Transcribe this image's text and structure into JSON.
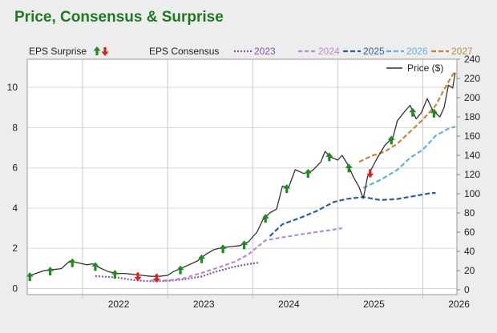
{
  "title": "Price, Consensus & Surprise",
  "legend": {
    "surprise_label": "EPS Surprise",
    "consensus_label": "EPS Consensus",
    "price_label": "Price ($)"
  },
  "colors": {
    "background": "#ededed",
    "plot_bg": "#ffffff",
    "title": "#1f7a1f",
    "up_arrow": "#1f8a1f",
    "down_arrow": "#e02020",
    "price": "#333333"
  },
  "chart_data": {
    "type": "line",
    "title": "Price, Consensus & Surprise",
    "y_left": {
      "label": "",
      "ticks": [
        0,
        2,
        4,
        6,
        8,
        10
      ],
      "range": [
        -0.3,
        11.4
      ]
    },
    "y_right": {
      "label": "Price ($)",
      "ticks": [
        0,
        20,
        40,
        60,
        80,
        100,
        120,
        140,
        160,
        180,
        200,
        220,
        240
      ],
      "range": [
        -5,
        240
      ]
    },
    "x": {
      "ticks": [
        "2022",
        "2023",
        "2024",
        "2025",
        "2026"
      ],
      "range": [
        2021.35,
        2026.4
      ]
    },
    "grid": true,
    "legend_position": "top",
    "series": [
      {
        "name": "2023",
        "color": "#8a4fa8",
        "dash": "2,2",
        "points": [
          [
            2022.15,
            0.62
          ],
          [
            2022.4,
            0.55
          ],
          [
            2022.6,
            0.42
          ],
          [
            2022.8,
            0.36
          ],
          [
            2023.0,
            0.38
          ],
          [
            2023.2,
            0.46
          ],
          [
            2023.4,
            0.6
          ],
          [
            2023.55,
            0.82
          ],
          [
            2023.75,
            1.05
          ],
          [
            2023.9,
            1.18
          ],
          [
            2024.05,
            1.28
          ],
          [
            2024.07,
            1.28
          ]
        ]
      },
      {
        "name": "2024",
        "color": "#b48ccf",
        "dash": "5,3",
        "points": [
          [
            2022.8,
            0.4
          ],
          [
            2023.0,
            0.4
          ],
          [
            2023.2,
            0.52
          ],
          [
            2023.4,
            0.78
          ],
          [
            2023.6,
            1.05
          ],
          [
            2023.8,
            1.35
          ],
          [
            2023.95,
            1.7
          ],
          [
            2024.15,
            2.4
          ],
          [
            2024.4,
            2.58
          ],
          [
            2024.65,
            2.75
          ],
          [
            2024.9,
            2.9
          ],
          [
            2025.05,
            3.0
          ]
        ]
      },
      {
        "name": "2025",
        "color": "#2a5fa0",
        "dash": "6,3",
        "points": [
          [
            2024.2,
            2.6
          ],
          [
            2024.35,
            3.2
          ],
          [
            2024.55,
            3.5
          ],
          [
            2024.75,
            3.85
          ],
          [
            2024.95,
            4.3
          ],
          [
            2025.1,
            4.45
          ],
          [
            2025.3,
            4.55
          ],
          [
            2025.5,
            4.4
          ],
          [
            2025.7,
            4.45
          ],
          [
            2025.9,
            4.6
          ],
          [
            2026.1,
            4.75
          ],
          [
            2026.15,
            4.75
          ]
        ]
      },
      {
        "name": "2026",
        "color": "#5fb1e0",
        "dash": "6,3",
        "points": [
          [
            2025.3,
            5.0
          ],
          [
            2025.5,
            5.4
          ],
          [
            2025.7,
            5.9
          ],
          [
            2025.85,
            6.5
          ],
          [
            2026.0,
            6.9
          ],
          [
            2026.15,
            7.6
          ],
          [
            2026.3,
            7.95
          ],
          [
            2026.38,
            8.05
          ]
        ]
      },
      {
        "name": "2027",
        "color": "#c08a3a",
        "dash": "6,3",
        "points": [
          [
            2025.25,
            6.3
          ],
          [
            2025.4,
            6.6
          ],
          [
            2025.55,
            6.8
          ],
          [
            2025.7,
            7.2
          ],
          [
            2025.85,
            7.8
          ],
          [
            2026.0,
            8.4
          ],
          [
            2026.15,
            9.1
          ],
          [
            2026.25,
            9.9
          ],
          [
            2026.33,
            10.5
          ],
          [
            2026.38,
            10.8
          ]
        ]
      },
      {
        "name": "Price ($)",
        "axis": "right",
        "color": "#333333",
        "points": [
          [
            2021.35,
            14
          ],
          [
            2021.45,
            17
          ],
          [
            2021.55,
            20
          ],
          [
            2021.65,
            21
          ],
          [
            2021.75,
            22
          ],
          [
            2021.85,
            30
          ],
          [
            2021.95,
            28
          ],
          [
            2022.05,
            26
          ],
          [
            2022.12,
            27
          ],
          [
            2022.2,
            23
          ],
          [
            2022.3,
            19
          ],
          [
            2022.4,
            17
          ],
          [
            2022.5,
            17
          ],
          [
            2022.6,
            16
          ],
          [
            2022.7,
            15
          ],
          [
            2022.8,
            14
          ],
          [
            2022.9,
            14
          ],
          [
            2023.0,
            15
          ],
          [
            2023.07,
            19
          ],
          [
            2023.15,
            22
          ],
          [
            2023.25,
            26
          ],
          [
            2023.35,
            30
          ],
          [
            2023.45,
            37
          ],
          [
            2023.55,
            42
          ],
          [
            2023.65,
            44
          ],
          [
            2023.75,
            45
          ],
          [
            2023.85,
            46
          ],
          [
            2023.95,
            50
          ],
          [
            2024.05,
            60
          ],
          [
            2024.12,
            73
          ],
          [
            2024.2,
            80
          ],
          [
            2024.28,
            84
          ],
          [
            2024.35,
            108
          ],
          [
            2024.42,
            106
          ],
          [
            2024.5,
            125
          ],
          [
            2024.6,
            121
          ],
          [
            2024.7,
            124
          ],
          [
            2024.8,
            133
          ],
          [
            2024.85,
            144
          ],
          [
            2024.92,
            138
          ],
          [
            2025.0,
            135
          ],
          [
            2025.05,
            140
          ],
          [
            2025.12,
            130
          ],
          [
            2025.18,
            118
          ],
          [
            2025.25,
            107
          ],
          [
            2025.3,
            95
          ],
          [
            2025.35,
            118
          ],
          [
            2025.45,
            135
          ],
          [
            2025.55,
            150
          ],
          [
            2025.65,
            159
          ],
          [
            2025.7,
            176
          ],
          [
            2025.78,
            185
          ],
          [
            2025.85,
            192
          ],
          [
            2025.92,
            178
          ],
          [
            2025.98,
            184
          ],
          [
            2026.05,
            199
          ],
          [
            2026.12,
            186
          ],
          [
            2026.2,
            180
          ],
          [
            2026.25,
            190
          ],
          [
            2026.3,
            213
          ],
          [
            2026.35,
            210
          ],
          [
            2026.38,
            226
          ]
        ]
      }
    ],
    "surprises": [
      {
        "x": 2021.38,
        "dir": "up"
      },
      {
        "x": 2021.62,
        "dir": "up"
      },
      {
        "x": 2021.88,
        "dir": "up"
      },
      {
        "x": 2022.15,
        "dir": "up"
      },
      {
        "x": 2022.38,
        "dir": "up"
      },
      {
        "x": 2022.65,
        "dir": "down"
      },
      {
        "x": 2022.87,
        "dir": "down"
      },
      {
        "x": 2023.15,
        "dir": "up"
      },
      {
        "x": 2023.4,
        "dir": "up"
      },
      {
        "x": 2023.65,
        "dir": "up"
      },
      {
        "x": 2023.9,
        "dir": "up"
      },
      {
        "x": 2024.15,
        "dir": "up"
      },
      {
        "x": 2024.4,
        "dir": "up"
      },
      {
        "x": 2024.65,
        "dir": "up"
      },
      {
        "x": 2024.9,
        "dir": "up"
      },
      {
        "x": 2025.13,
        "dir": "up"
      },
      {
        "x": 2025.38,
        "dir": "down"
      },
      {
        "x": 2025.63,
        "dir": "up"
      },
      {
        "x": 2025.88,
        "dir": "up"
      },
      {
        "x": 2026.13,
        "dir": "up"
      }
    ]
  }
}
